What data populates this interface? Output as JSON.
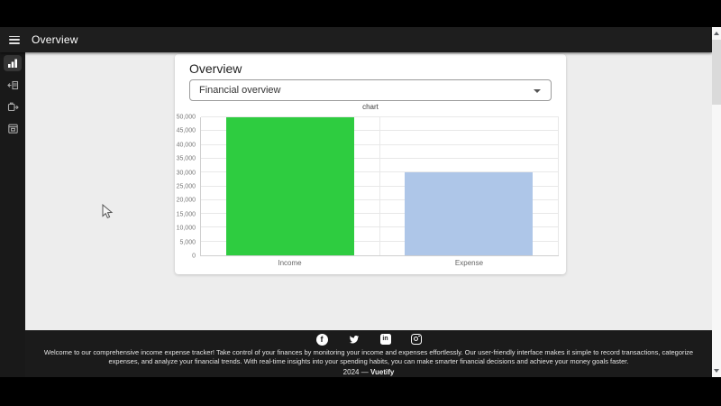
{
  "app_bar": {
    "title": "Overview"
  },
  "sidebar": {
    "items": [
      {
        "name": "overview",
        "icon": "bar-chart-icon",
        "active": true
      },
      {
        "name": "income",
        "icon": "archive-arrow-left-icon",
        "active": false
      },
      {
        "name": "expense",
        "icon": "box-arrow-right-icon",
        "active": false
      },
      {
        "name": "calendar",
        "icon": "calendar-icon",
        "active": false
      }
    ]
  },
  "card": {
    "title": "Overview",
    "select": {
      "value": "Financial overview",
      "caret_icon": "chevron-down-icon"
    }
  },
  "chart_data": {
    "type": "bar",
    "title": "chart",
    "categories": [
      "Income",
      "Expense"
    ],
    "values": [
      50000,
      30000
    ],
    "colors": [
      "#2ecc40",
      "#aec6e8"
    ],
    "ylim": [
      0,
      50000
    ],
    "ytick_step": 5000,
    "grid": true,
    "legend": "none"
  },
  "footer": {
    "social_icons": [
      "facebook-icon",
      "twitter-icon",
      "linkedin-icon",
      "instagram-icon"
    ],
    "linkedin_label": "in",
    "facebook_label": "f",
    "description": "Welcome to our comprehensive income expense tracker! Take control of your finances by monitoring your income and expenses effortlessly. Our user-friendly interface makes it simple to record transactions, categorize expenses, and analyze your financial trends. With real-time insights into your spending habits, you can make smarter financial decisions and achieve your money goals faster.",
    "copyright": {
      "year_text": "2024 —",
      "brand": "Vuetify"
    }
  },
  "theme": {
    "app_bar_bg": "#1e1e1e",
    "rail_bg": "#191919",
    "footer_bg": "#1b1b1b",
    "main_bg": "#ededed",
    "card_bg": "#ffffff",
    "income_color": "#2ecc40",
    "expense_color": "#aec6e8"
  }
}
